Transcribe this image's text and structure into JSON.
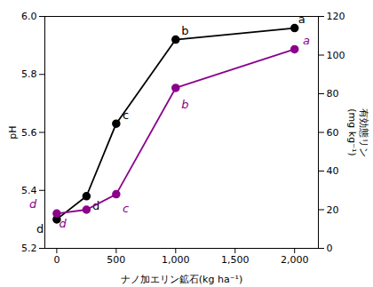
{
  "chart_data": {
    "type": "line",
    "xlabel": "ナノ加エリン鉱石(kg ha⁻¹)",
    "ylabel": "pH",
    "y2label": "有効態リン\n(mg kg⁻¹)",
    "x": [
      0,
      250,
      500,
      1000,
      2000
    ],
    "xlim": [
      -100,
      2200
    ],
    "xticks": [
      0,
      500,
      {
        "value": 1000,
        "label": "1,000"
      },
      {
        "value": 1500,
        "label": "1,500"
      },
      {
        "value": 2000,
        "label": "2,000"
      }
    ],
    "ylim": [
      5.2,
      6.0
    ],
    "yticks": [
      5.2,
      5.4,
      5.6,
      5.8,
      {
        "value": 6.0,
        "label": "6.0"
      }
    ],
    "y2lim": [
      0,
      120
    ],
    "y2ticks": [
      0,
      20,
      40,
      60,
      80,
      100,
      120
    ],
    "series": [
      {
        "color": "#000000",
        "marker": "o",
        "values": [
          5.3,
          5.38,
          5.63,
          5.92,
          5.96
        ]
      },
      {
        "color": "#8B008B",
        "marker": "o",
        "axis": "y2",
        "values": [
          18,
          20,
          28,
          83,
          103
        ]
      }
    ],
    "annotations": [
      {
        "text": "d",
        "x": 0,
        "y": 5.3,
        "color": "#000000"
      },
      {
        "text": "d",
        "x": 250,
        "y": 5.38,
        "color": "#000000"
      },
      {
        "text": "c",
        "x": 500,
        "y": 5.63,
        "color": "#000000"
      },
      {
        "text": "b",
        "x": 1000,
        "y": 5.92,
        "color": "#000000"
      },
      {
        "text": "a",
        "x": 2000,
        "y": 5.96,
        "color": "#000000"
      },
      {
        "text": "d",
        "x": 0,
        "y": 18,
        "axis": "y2",
        "color": "#8B008B"
      },
      {
        "text": "d",
        "x": 250,
        "y": 20,
        "axis": "y2",
        "color": "#8B008B"
      },
      {
        "text": "c",
        "x": 500,
        "y": 28,
        "axis": "y2",
        "color": "#8B008B"
      },
      {
        "text": "b",
        "x": 1000,
        "y": 83,
        "axis": "y2",
        "color": "#8B008B"
      },
      {
        "text": "a",
        "x": 2000,
        "y": 103,
        "axis": "y2",
        "color": "#8B008B"
      }
    ]
  }
}
